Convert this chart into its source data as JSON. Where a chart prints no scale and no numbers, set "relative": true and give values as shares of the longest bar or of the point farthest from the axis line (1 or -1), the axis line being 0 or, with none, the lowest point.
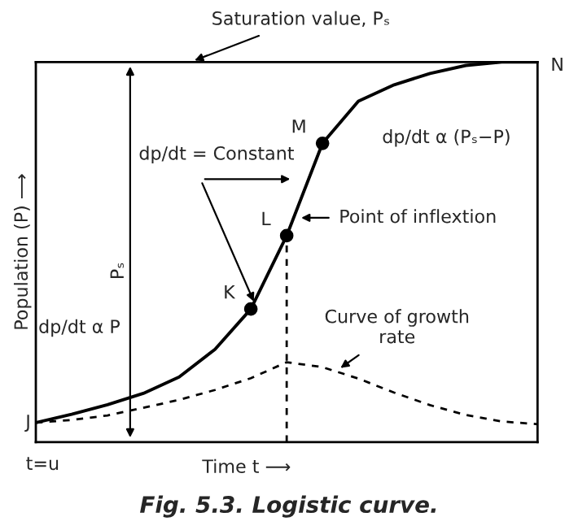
{
  "chart_data": {
    "type": "line",
    "relative": true,
    "title": "Fig. 5.3. Logistic curve.",
    "xlabel": "Time t ⟶",
    "ylabel": "Population (P) ⟶",
    "categories": [
      null,
      null,
      null,
      null,
      null,
      null,
      null,
      null,
      null,
      null,
      null,
      null,
      null,
      null,
      null
    ],
    "series": [
      {
        "color": "#000000",
        "line_style": "solid",
        "values": [
          0.051,
          0.073,
          0.098,
          0.128,
          0.171,
          0.244,
          0.35,
          0.543,
          0.786,
          0.897,
          0.94,
          0.97,
          0.991,
          1.0,
          1.0
        ]
      },
      {
        "color": "#000000",
        "line_style": "dashed",
        "values": [
          0.051,
          0.058,
          0.07,
          0.09,
          0.111,
          0.137,
          0.168,
          0.21,
          0.197,
          0.167,
          0.13,
          0.097,
          0.071,
          0.054,
          0.047
        ]
      }
    ],
    "annotations": [
      "Saturation value, Pₛ",
      "N",
      "J",
      "t=u",
      "dp/dt = Constant",
      "dp/dt α (Pₛ−P)",
      "dp/dt α P",
      "Point of inflextion",
      "Curve of growth\nrate",
      "Pₛ",
      "K",
      "L",
      "M"
    ],
    "grid": false,
    "legend": false
  }
}
